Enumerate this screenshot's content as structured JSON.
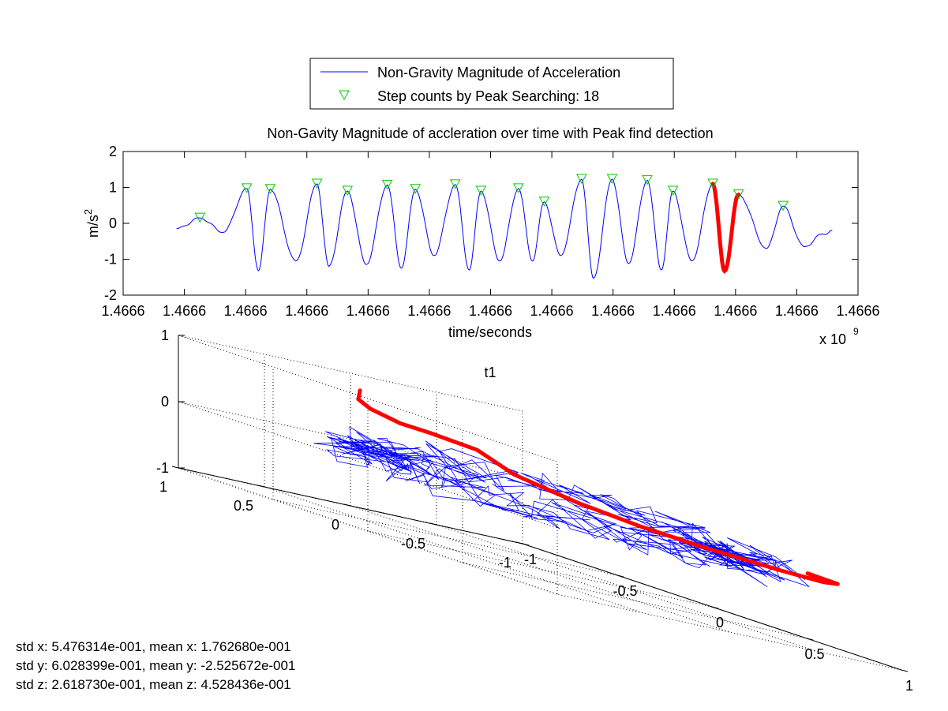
{
  "chart_data": [
    {
      "type": "line",
      "title": "Non-Gavity Magnitude of accleration over time with Peak find detection",
      "xlabel": "time/seconds",
      "ylabel": "m/s",
      "ylabel_exponent": "2",
      "x_multiplier_base": "x 10",
      "x_multiplier_exp": "9",
      "x_ticks": [
        "1.4666",
        "1.4666",
        "1.4666",
        "1.4666",
        "1.4666",
        "1.4666",
        "1.4666",
        "1.4666",
        "1.4666",
        "1.4666",
        "1.4666",
        "1.4666",
        "1.4666"
      ],
      "ylim": [
        -2,
        2
      ],
      "y_ticks": [
        "2",
        "1",
        "0",
        "-1",
        "-2"
      ],
      "legend": {
        "placement": "top",
        "entries": [
          {
            "label": "Non-Gravity Magnitude of Acceleration",
            "color": "#0000ff",
            "marker": "line"
          },
          {
            "label": "Step counts by Peak Searching: 18",
            "color": "#00cc00",
            "marker": "triangle-down"
          }
        ]
      },
      "signal_peaks": [
        {
          "t": 0.05,
          "v": 0.15
        },
        {
          "t": 0.15,
          "v": 0.97
        },
        {
          "t": 0.2,
          "v": 0.95
        },
        {
          "t": 0.3,
          "v": 1.1
        },
        {
          "t": 0.365,
          "v": 0.9
        },
        {
          "t": 0.45,
          "v": 1.07
        },
        {
          "t": 0.51,
          "v": 0.95
        },
        {
          "t": 0.595,
          "v": 1.08
        },
        {
          "t": 0.65,
          "v": 0.9
        },
        {
          "t": 0.73,
          "v": 0.97
        },
        {
          "t": 0.785,
          "v": 0.6
        },
        {
          "t": 0.865,
          "v": 1.23
        },
        {
          "t": 0.93,
          "v": 1.23
        },
        {
          "t": 1.005,
          "v": 1.2
        },
        {
          "t": 1.06,
          "v": 0.9
        },
        {
          "t": 1.145,
          "v": 1.1
        },
        {
          "t": 1.2,
          "v": 0.8
        },
        {
          "t": 1.295,
          "v": 0.48
        }
      ],
      "signal_troughs": [
        {
          "t": 0.0,
          "v": -0.15
        },
        {
          "t": 0.1,
          "v": -0.25
        },
        {
          "t": 0.175,
          "v": -1.32
        },
        {
          "t": 0.255,
          "v": -1.05
        },
        {
          "t": 0.325,
          "v": -1.2
        },
        {
          "t": 0.405,
          "v": -1.15
        },
        {
          "t": 0.48,
          "v": -1.25
        },
        {
          "t": 0.55,
          "v": -0.9
        },
        {
          "t": 0.625,
          "v": -1.3
        },
        {
          "t": 0.69,
          "v": -1.05
        },
        {
          "t": 0.76,
          "v": -1.05
        },
        {
          "t": 0.82,
          "v": -0.9
        },
        {
          "t": 0.89,
          "v": -1.53
        },
        {
          "t": 0.965,
          "v": -1.12
        },
        {
          "t": 1.035,
          "v": -1.3
        },
        {
          "t": 1.1,
          "v": -1.05
        },
        {
          "t": 1.17,
          "v": -1.33
        },
        {
          "t": 1.26,
          "v": -0.7
        },
        {
          "t": 1.34,
          "v": -0.65
        },
        {
          "t": 1.38,
          "v": -0.3
        },
        {
          "t": 1.4,
          "v": -0.2
        }
      ],
      "highlight_segment": [
        1.145,
        1.2
      ],
      "highlight_color": "#ff0000",
      "signal_color": "#0000ff",
      "marker_color": "#00cc00"
    },
    {
      "type": "line",
      "title": "t1",
      "x_ticks": [
        "-1",
        "-0.5",
        "0",
        "0.5",
        "1"
      ],
      "y_ticks": [
        "1",
        "0.5",
        "0",
        "-0.5",
        "-1"
      ],
      "z_ticks": [
        "1",
        "0",
        "-1"
      ],
      "trajectory_color": "#0000ff",
      "highlight_color": "#ff0000",
      "highlight_path": [
        [
          0.55,
          -0.95,
          0.0
        ],
        [
          0.8,
          -0.85,
          0.02
        ],
        [
          0.95,
          -0.6,
          0.05
        ],
        [
          1.0,
          -0.3,
          0.1
        ],
        [
          0.95,
          0.1,
          0.18
        ],
        [
          0.85,
          0.35,
          0.25
        ],
        [
          0.7,
          0.55,
          0.35
        ],
        [
          0.5,
          0.7,
          0.5
        ],
        [
          0.35,
          0.75,
          0.7
        ],
        [
          0.1,
          0.75,
          0.72
        ],
        [
          -0.1,
          0.7,
          0.7
        ],
        [
          -0.35,
          0.6,
          0.74
        ],
        [
          -0.55,
          0.45,
          0.78
        ],
        [
          -0.45,
          0.55,
          0.95
        ]
      ]
    }
  ],
  "stats": [
    "std x: 5.476314e-001, mean x: 1.762680e-001",
    "std y: 6.028399e-001, mean y: -2.525672e-001",
    "std z: 2.618730e-001, mean z: 4.528436e-001"
  ]
}
